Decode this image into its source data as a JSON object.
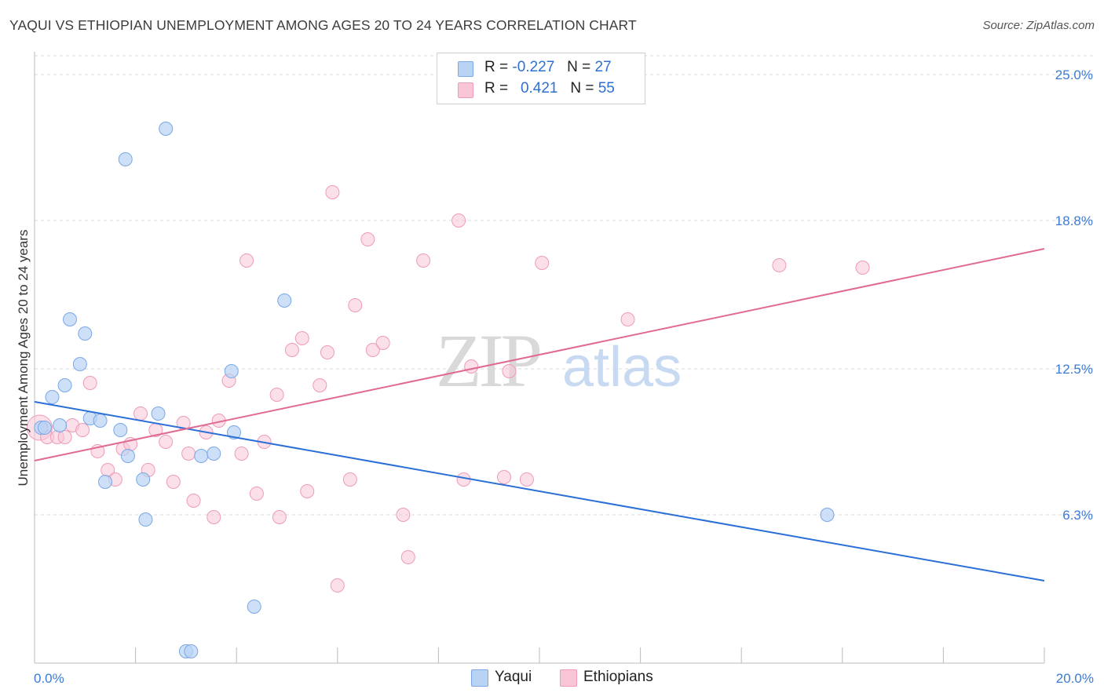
{
  "title": "YAQUI VS ETHIOPIAN UNEMPLOYMENT AMONG AGES 20 TO 24 YEARS CORRELATION CHART",
  "source": "Source: ZipAtlas.com",
  "watermark": {
    "zip": "ZIP",
    "atlas": "atlas"
  },
  "legend": {
    "yaqui": {
      "r_label": "R =",
      "r_value": "-0.227",
      "n_label": "N =",
      "n_value": "27"
    },
    "ethiopians": {
      "r_label": "R =",
      "r_value": "0.421",
      "n_label": "N =",
      "n_value": "55"
    }
  },
  "bottom_legend": {
    "yaqui": "Yaqui",
    "ethiopians": "Ethiopians"
  },
  "colors": {
    "yaqui_fill": "#b9d3f5",
    "yaqui_stroke": "#7aa8e6",
    "yaqui_line": "#2a6fd6",
    "eth_fill": "#f8c6d7",
    "eth_stroke": "#ef9bb8",
    "eth_line": "#e06a92",
    "tick_label": "#3b7bd4",
    "grid": "#d8d8d8"
  },
  "chart_data": {
    "type": "scatter",
    "title": "YAQUI VS ETHIOPIAN UNEMPLOYMENT AMONG AGES 20 TO 24 YEARS CORRELATION CHART",
    "xlabel": "",
    "ylabel": "Unemployment Among Ages 20 to 24 years",
    "xlim": [
      0,
      20
    ],
    "ylim": [
      0,
      25.8
    ],
    "x_tick_labels": [
      "0.0%",
      "20.0%"
    ],
    "y_ticks": [
      6.3,
      12.5,
      18.8,
      25.0
    ],
    "y_tick_labels": [
      "6.3%",
      "12.5%",
      "18.8%",
      "25.0%"
    ],
    "grid": true,
    "legend_position": "top-center",
    "series": [
      {
        "name": "Yaqui",
        "points": [
          [
            0.13,
            10.0
          ],
          [
            0.35,
            11.3
          ],
          [
            0.6,
            11.8
          ],
          [
            0.7,
            14.6
          ],
          [
            0.9,
            12.7
          ],
          [
            1.0,
            14.0
          ],
          [
            0.5,
            10.1
          ],
          [
            1.1,
            10.4
          ],
          [
            1.3,
            10.3
          ],
          [
            1.4,
            7.7
          ],
          [
            1.7,
            9.9
          ],
          [
            1.8,
            21.4
          ],
          [
            1.85,
            8.8
          ],
          [
            2.15,
            7.8
          ],
          [
            2.2,
            6.1
          ],
          [
            2.45,
            10.6
          ],
          [
            2.6,
            22.7
          ],
          [
            3.0,
            0.5
          ],
          [
            3.1,
            0.5
          ],
          [
            3.3,
            8.8
          ],
          [
            3.55,
            8.9
          ],
          [
            3.9,
            12.4
          ],
          [
            3.95,
            9.8
          ],
          [
            4.35,
            2.4
          ],
          [
            4.95,
            15.4
          ],
          [
            15.7,
            6.3
          ],
          [
            0.2,
            10.0
          ]
        ],
        "trend": {
          "x": [
            0,
            20
          ],
          "y": [
            11.1,
            3.5
          ]
        }
      },
      {
        "name": "Ethiopians",
        "points": [
          [
            0.1,
            10.0
          ],
          [
            0.25,
            9.6
          ],
          [
            0.45,
            9.6
          ],
          [
            0.6,
            9.6
          ],
          [
            0.75,
            10.1
          ],
          [
            0.95,
            9.9
          ],
          [
            1.1,
            11.9
          ],
          [
            1.25,
            9.0
          ],
          [
            1.45,
            8.2
          ],
          [
            1.6,
            7.8
          ],
          [
            1.75,
            9.1
          ],
          [
            1.9,
            9.3
          ],
          [
            2.1,
            10.6
          ],
          [
            2.25,
            8.2
          ],
          [
            2.4,
            9.9
          ],
          [
            2.6,
            9.4
          ],
          [
            2.75,
            7.7
          ],
          [
            2.95,
            10.2
          ],
          [
            3.05,
            8.9
          ],
          [
            3.15,
            6.9
          ],
          [
            3.4,
            9.8
          ],
          [
            3.55,
            6.2
          ],
          [
            3.65,
            10.3
          ],
          [
            3.85,
            12.0
          ],
          [
            4.1,
            8.9
          ],
          [
            4.2,
            17.1
          ],
          [
            4.4,
            7.2
          ],
          [
            4.55,
            9.4
          ],
          [
            4.8,
            11.4
          ],
          [
            4.85,
            6.2
          ],
          [
            5.1,
            13.3
          ],
          [
            5.3,
            13.8
          ],
          [
            5.4,
            7.3
          ],
          [
            5.65,
            11.8
          ],
          [
            5.8,
            13.2
          ],
          [
            5.9,
            20.0
          ],
          [
            6.0,
            3.3
          ],
          [
            6.25,
            7.8
          ],
          [
            6.35,
            15.2
          ],
          [
            6.6,
            18.0
          ],
          [
            6.7,
            13.3
          ],
          [
            6.9,
            13.6
          ],
          [
            7.3,
            6.3
          ],
          [
            7.4,
            4.5
          ],
          [
            7.7,
            17.1
          ],
          [
            8.4,
            18.8
          ],
          [
            8.5,
            7.8
          ],
          [
            8.65,
            12.6
          ],
          [
            9.3,
            7.9
          ],
          [
            9.4,
            12.4
          ],
          [
            9.75,
            7.8
          ],
          [
            10.05,
            17.0
          ],
          [
            11.75,
            14.6
          ],
          [
            14.75,
            16.9
          ],
          [
            16.4,
            16.8
          ]
        ],
        "trend": {
          "x": [
            0,
            20
          ],
          "y": [
            8.6,
            17.6
          ]
        }
      }
    ]
  }
}
